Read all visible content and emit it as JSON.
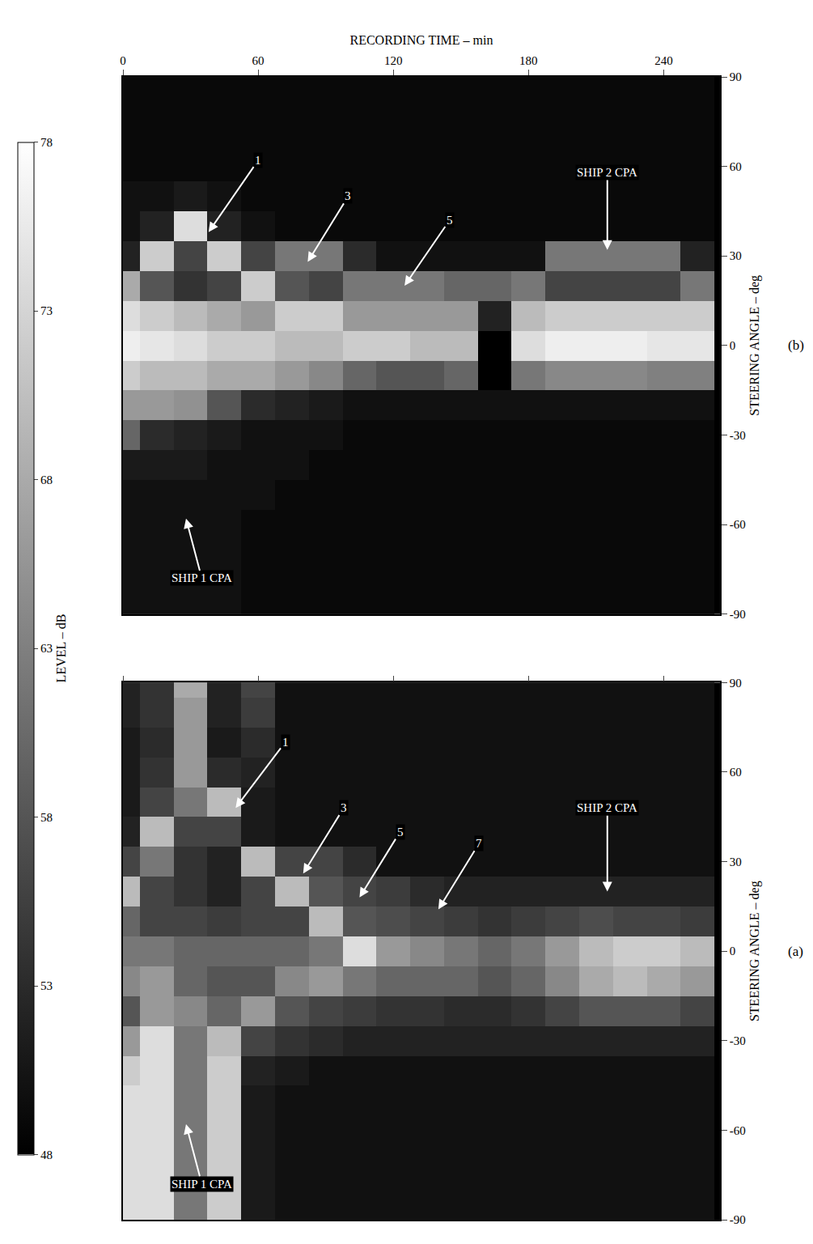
{
  "chart_data": [
    {
      "type": "heatmap",
      "label": "(b)",
      "x_label": "RECORDING TIME – min",
      "y_label": "STEERING ANGLE – deg",
      "xlim": [
        0,
        265
      ],
      "ylim": [
        -90,
        90
      ],
      "xticks": [
        0,
        60,
        120,
        180,
        240
      ],
      "yticks": [
        -90,
        -60,
        -30,
        0,
        30,
        60,
        90
      ],
      "tick_labels": true,
      "grid": false,
      "colorbar": {
        "title": "LEVEL – dB",
        "range": [
          48,
          78
        ],
        "ticks": [
          48,
          53,
          58,
          63,
          68,
          73,
          78
        ]
      },
      "x": [
        0,
        15,
        30,
        45,
        60,
        75,
        90,
        105,
        120,
        135,
        150,
        165,
        180,
        195,
        210,
        225,
        240,
        255
      ],
      "y": [
        -90,
        -80,
        -70,
        -60,
        -50,
        -40,
        -30,
        -20,
        -10,
        0,
        10,
        20,
        30,
        40,
        50,
        60,
        70,
        80,
        90
      ],
      "z": [
        [
          50,
          50,
          50,
          50,
          49,
          49,
          49,
          49,
          49,
          49,
          49,
          49,
          49,
          49,
          49,
          49,
          49,
          49
        ],
        [
          50,
          50,
          50,
          50,
          49,
          49,
          49,
          49,
          49,
          49,
          49,
          49,
          49,
          49,
          49,
          49,
          49,
          49
        ],
        [
          50,
          50,
          50,
          50,
          49,
          49,
          49,
          49,
          49,
          49,
          49,
          49,
          49,
          49,
          49,
          49,
          49,
          49
        ],
        [
          50,
          50,
          50,
          50,
          49,
          49,
          49,
          49,
          49,
          49,
          49,
          49,
          49,
          49,
          49,
          49,
          49,
          49
        ],
        [
          50,
          50,
          50,
          50,
          50,
          49,
          49,
          49,
          49,
          49,
          49,
          49,
          49,
          49,
          49,
          49,
          49,
          49
        ],
        [
          51,
          51,
          51,
          50,
          50,
          50,
          49,
          49,
          49,
          49,
          49,
          49,
          49,
          49,
          49,
          49,
          49,
          49
        ],
        [
          60,
          53,
          52,
          51,
          50,
          50,
          50,
          49,
          49,
          49,
          49,
          49,
          49,
          49,
          49,
          49,
          49,
          49
        ],
        [
          66,
          66,
          65,
          58,
          53,
          52,
          51,
          50,
          50,
          50,
          50,
          50,
          50,
          50,
          50,
          50,
          50,
          50
        ],
        [
          72,
          70,
          70,
          68,
          68,
          66,
          64,
          60,
          58,
          58,
          60,
          48,
          62,
          64,
          64,
          64,
          63,
          63
        ],
        [
          76,
          75,
          74,
          72,
          72,
          70,
          70,
          72,
          72,
          70,
          70,
          48,
          74,
          76,
          76,
          76,
          75,
          75
        ],
        [
          74,
          72,
          70,
          68,
          66,
          72,
          72,
          66,
          66,
          66,
          66,
          52,
          70,
          72,
          72,
          72,
          72,
          72
        ],
        [
          68,
          58,
          54,
          56,
          72,
          58,
          56,
          62,
          62,
          62,
          60,
          60,
          62,
          56,
          56,
          56,
          56,
          62
        ],
        [
          52,
          72,
          56,
          72,
          56,
          62,
          62,
          53,
          50,
          50,
          50,
          50,
          50,
          62,
          62,
          62,
          62,
          52
        ],
        [
          50,
          52,
          74,
          52,
          50,
          49,
          49,
          49,
          49,
          49,
          49,
          49,
          49,
          49,
          49,
          49,
          49,
          49
        ],
        [
          50,
          50,
          51,
          50,
          49,
          49,
          49,
          49,
          49,
          49,
          49,
          49,
          49,
          49,
          49,
          49,
          49,
          49
        ],
        [
          49,
          49,
          49,
          49,
          49,
          49,
          49,
          49,
          49,
          49,
          49,
          49,
          49,
          49,
          49,
          49,
          49,
          49
        ],
        [
          49,
          49,
          49,
          49,
          49,
          49,
          49,
          49,
          49,
          49,
          49,
          49,
          49,
          49,
          49,
          49,
          49,
          49
        ],
        [
          49,
          49,
          49,
          49,
          49,
          49,
          49,
          49,
          49,
          49,
          49,
          49,
          49,
          49,
          49,
          49,
          49,
          49
        ],
        [
          49,
          49,
          49,
          49,
          49,
          49,
          49,
          49,
          49,
          49,
          49,
          49,
          49,
          49,
          49,
          49,
          49,
          49
        ]
      ],
      "annotations": [
        {
          "text": "1",
          "x": 38,
          "y": 38,
          "tx": 60,
          "ty": 62
        },
        {
          "text": "3",
          "x": 82,
          "y": 28,
          "tx": 100,
          "ty": 50
        },
        {
          "text": "5",
          "x": 125,
          "y": 20,
          "tx": 145,
          "ty": 42
        },
        {
          "text": "SHIP 2 CPA",
          "x": 215,
          "y": 32,
          "tx": 215,
          "ty": 58
        },
        {
          "text": "SHIP 1 CPA",
          "x": 28,
          "y": -58,
          "tx": 35,
          "ty": -78
        }
      ]
    },
    {
      "type": "heatmap",
      "label": "(a)",
      "y_label": "STEERING ANGLE – deg",
      "xlim": [
        0,
        265
      ],
      "ylim": [
        -90,
        90
      ],
      "xticks": [
        0,
        60,
        120,
        180,
        240
      ],
      "yticks": [
        -90,
        -60,
        -30,
        0,
        30,
        60,
        90
      ],
      "tick_labels": "y",
      "grid": false,
      "x": [
        0,
        15,
        30,
        45,
        60,
        75,
        90,
        105,
        120,
        135,
        150,
        165,
        180,
        195,
        210,
        225,
        240,
        255
      ],
      "y": [
        -90,
        -80,
        -70,
        -60,
        -50,
        -40,
        -30,
        -20,
        -10,
        0,
        10,
        20,
        30,
        40,
        50,
        60,
        70,
        80,
        90
      ],
      "z": [
        [
          74,
          74,
          62,
          72,
          51,
          50,
          50,
          50,
          50,
          50,
          50,
          50,
          50,
          50,
          50,
          50,
          50,
          50
        ],
        [
          74,
          74,
          62,
          72,
          51,
          50,
          50,
          50,
          50,
          50,
          50,
          50,
          50,
          50,
          50,
          50,
          50,
          50
        ],
        [
          74,
          74,
          62,
          72,
          51,
          50,
          50,
          50,
          50,
          50,
          50,
          50,
          50,
          50,
          50,
          50,
          50,
          50
        ],
        [
          74,
          74,
          62,
          72,
          51,
          50,
          50,
          50,
          50,
          50,
          50,
          50,
          50,
          50,
          50,
          50,
          50,
          50
        ],
        [
          74,
          74,
          62,
          72,
          51,
          50,
          50,
          50,
          50,
          50,
          50,
          50,
          50,
          50,
          50,
          50,
          50,
          50
        ],
        [
          72,
          74,
          62,
          72,
          52,
          51,
          50,
          50,
          50,
          50,
          50,
          50,
          50,
          50,
          50,
          50,
          50,
          50
        ],
        [
          66,
          74,
          62,
          70,
          56,
          54,
          53,
          52,
          52,
          52,
          52,
          52,
          52,
          52,
          52,
          52,
          52,
          52
        ],
        [
          58,
          66,
          64,
          60,
          66,
          58,
          56,
          55,
          54,
          54,
          53,
          53,
          54,
          56,
          58,
          58,
          58,
          56
        ],
        [
          64,
          66,
          60,
          58,
          58,
          64,
          66,
          62,
          60,
          60,
          60,
          58,
          60,
          64,
          68,
          70,
          68,
          66
        ],
        [
          62,
          62,
          60,
          60,
          60,
          60,
          62,
          74,
          66,
          64,
          62,
          60,
          62,
          66,
          70,
          72,
          72,
          70
        ],
        [
          60,
          56,
          56,
          55,
          56,
          56,
          70,
          58,
          57,
          56,
          55,
          54,
          55,
          56,
          57,
          56,
          56,
          55
        ],
        [
          70,
          56,
          54,
          52,
          56,
          70,
          58,
          56,
          55,
          53,
          52,
          52,
          52,
          52,
          52,
          52,
          52,
          52
        ],
        [
          56,
          62,
          54,
          52,
          70,
          56,
          56,
          53,
          50,
          50,
          50,
          50,
          50,
          50,
          50,
          50,
          50,
          50
        ],
        [
          52,
          70,
          56,
          56,
          51,
          50,
          50,
          50,
          50,
          50,
          50,
          50,
          50,
          50,
          50,
          50,
          50,
          50
        ],
        [
          51,
          56,
          62,
          70,
          51,
          50,
          50,
          50,
          50,
          50,
          50,
          50,
          50,
          50,
          50,
          50,
          50,
          50
        ],
        [
          51,
          54,
          66,
          53,
          52,
          50,
          50,
          50,
          50,
          50,
          50,
          50,
          50,
          50,
          50,
          50,
          50,
          50
        ],
        [
          51,
          53,
          66,
          51,
          53,
          50,
          50,
          50,
          50,
          50,
          50,
          50,
          50,
          50,
          50,
          50,
          50,
          50
        ],
        [
          52,
          54,
          66,
          52,
          55,
          50,
          50,
          50,
          50,
          50,
          50,
          50,
          50,
          50,
          50,
          50,
          50,
          50
        ],
        [
          52,
          54,
          68,
          52,
          56,
          50,
          50,
          50,
          50,
          50,
          50,
          50,
          50,
          50,
          50,
          50,
          50,
          50
        ]
      ],
      "annotations": [
        {
          "text": "1",
          "x": 50,
          "y": 48,
          "tx": 72,
          "ty": 70
        },
        {
          "text": "3",
          "x": 80,
          "y": 26,
          "tx": 98,
          "ty": 48
        },
        {
          "text": "5",
          "x": 105,
          "y": 18,
          "tx": 123,
          "ty": 40
        },
        {
          "text": "7",
          "x": 140,
          "y": 14,
          "tx": 158,
          "ty": 36
        },
        {
          "text": "SHIP 2 CPA",
          "x": 215,
          "y": 20,
          "tx": 215,
          "ty": 48
        },
        {
          "text": "SHIP 1 CPA",
          "x": 28,
          "y": -58,
          "tx": 35,
          "ty": -78
        }
      ]
    }
  ]
}
